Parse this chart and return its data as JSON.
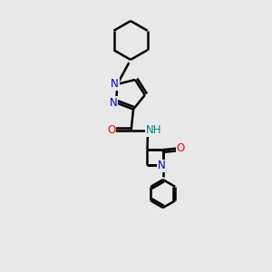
{
  "background_color": "#e8e8e8",
  "bond_color": "#000000",
  "bond_width": 1.8,
  "atom_colors": {
    "N": "#0000cc",
    "O": "#ff0000",
    "NH": "#008080",
    "C": "#000000"
  },
  "font_size": 8.5,
  "fig_size": [
    3.0,
    3.0
  ],
  "dpi": 100
}
